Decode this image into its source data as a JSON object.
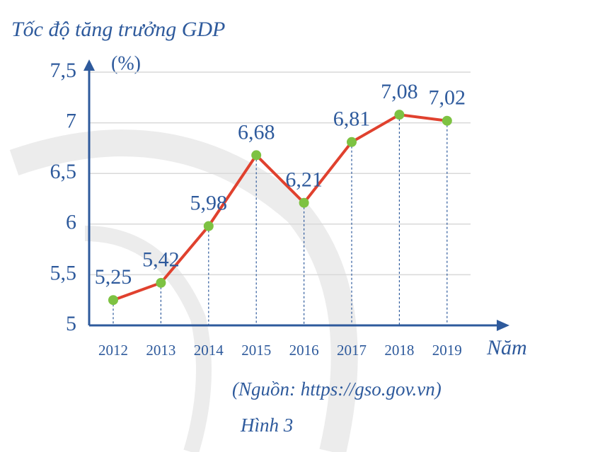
{
  "chart_data": {
    "type": "line",
    "title": "Tốc độ tăng trưởng GDP",
    "y_label": "(%)",
    "x_label": "Năm",
    "source": "(Nguồn: https://gso.gov.vn)",
    "caption": "Hình 3",
    "categories": [
      "2012",
      "2013",
      "2014",
      "2015",
      "2016",
      "2017",
      "2018",
      "2019"
    ],
    "values": [
      5.25,
      5.42,
      5.98,
      6.68,
      6.21,
      6.81,
      7.08,
      7.02
    ],
    "value_labels": [
      "5,25",
      "5,42",
      "5,98",
      "6,68",
      "6,21",
      "6,81",
      "7,08",
      "7,02"
    ],
    "line_color": "#e0412e",
    "marker_color": "#7dc242",
    "ylim": [
      5,
      7.5
    ],
    "yticks": [
      {
        "value": 7.5,
        "label": "7,5"
      },
      7,
      {
        "value": 6.5,
        "label": "6,5"
      },
      6,
      {
        "value": 5.5,
        "label": "5,5"
      },
      5
    ],
    "grid": true
  }
}
